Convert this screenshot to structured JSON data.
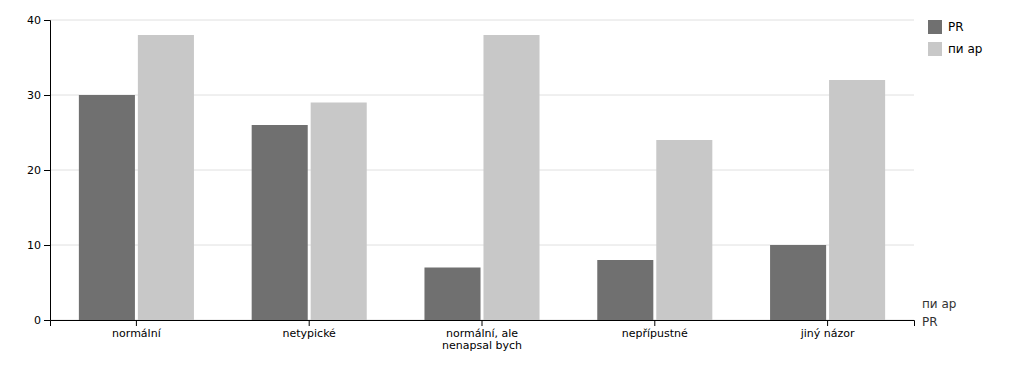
{
  "chart_data": {
    "type": "bar",
    "categories": [
      "normální",
      "netypické",
      "normální, ale\nnenapsal bych",
      "nepřípustné",
      "jiný názor"
    ],
    "series": [
      {
        "name": "PR",
        "color": "#707070",
        "values": [
          30,
          26,
          7,
          8,
          10
        ]
      },
      {
        "name": "пи ар",
        "color": "#c8c8c8",
        "values": [
          38,
          29,
          38,
          24,
          32
        ]
      }
    ],
    "annotations": [
      "пи ар",
      "PR"
    ],
    "ylim": [
      0,
      40
    ],
    "yticks": [
      0,
      10,
      20,
      30,
      40
    ],
    "grid": true,
    "legend": "upper right"
  }
}
